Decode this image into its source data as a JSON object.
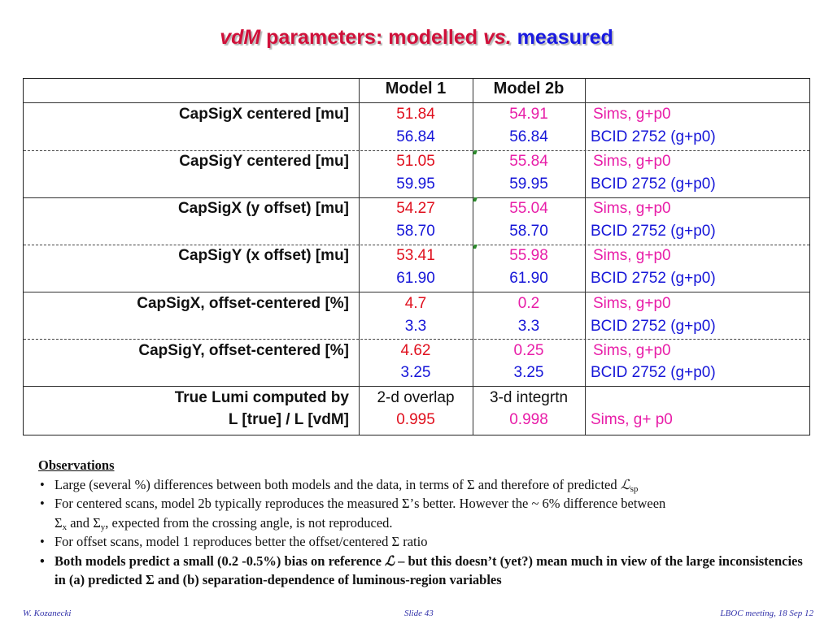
{
  "title": {
    "vdm": "vdM",
    "part1": "parameters:",
    "part2": "modelled",
    "vs": "vs.",
    "part3": "measured"
  },
  "table": {
    "headers": [
      "Model 1",
      "Model 2b",
      ""
    ],
    "rows": [
      {
        "label": "CapSigX centered [mu]",
        "m1": "51.84",
        "m2": "54.91",
        "src": "Sims, g+p0"
      },
      {
        "label": "",
        "m1": "56.84",
        "m2": "56.84",
        "src": "BCID 2752 (g+p0)"
      },
      {
        "label": "CapSigY centered [mu]",
        "m1": "51.05",
        "m2": "55.84",
        "src": "Sims, g+p0"
      },
      {
        "label": "",
        "m1": "59.95",
        "m2": "59.95",
        "src": "BCID 2752 (g+p0)"
      },
      {
        "label": "CapSigX (y offset) [mu]",
        "m1": "54.27",
        "m2": "55.04",
        "src": "Sims, g+p0"
      },
      {
        "label": "",
        "m1": "58.70",
        "m2": "58.70",
        "src": "BCID 2752 (g+p0)"
      },
      {
        "label": "CapSigY (x offset) [mu]",
        "m1": "53.41",
        "m2": "55.98",
        "src": "Sims, g+p0"
      },
      {
        "label": "",
        "m1": "61.90",
        "m2": "61.90",
        "src": "BCID 2752 (g+p0)"
      },
      {
        "label": "CapSigX, offset-centered [%]",
        "m1": "4.7",
        "m2": "0.2",
        "src": "Sims, g+p0"
      },
      {
        "label": "",
        "m1": "3.3",
        "m2": "3.3",
        "src": "BCID 2752 (g+p0)"
      },
      {
        "label": "CapSigY, offset-centered [%]",
        "m1": "4.62",
        "m2": "0.25",
        "src": "Sims, g+p0"
      },
      {
        "label": "",
        "m1": "3.25",
        "m2": "3.25",
        "src": "BCID 2752 (g+p0)"
      }
    ],
    "lumi": {
      "label1": "True Lumi computed by",
      "label2": "L [true] / L [vdM]",
      "m1_method": "2-d overlap",
      "m2_method": "3-d integrtn",
      "m1_value": "0.995",
      "m2_value": "0.998",
      "src": "Sims, g+ p0"
    }
  },
  "observations": {
    "heading": "Observations",
    "b1_text": "Large (several %) differences between both models and the data, in terms of  Σ and therefore of predicted ",
    "b1_sym": "ℒ",
    "b1_sub": "sp",
    "b2_text1": "For centered scans, model 2b typically reproduces the measured Σ’s better. However the ~ 6% difference between",
    "b2_sigma": "Σ",
    "b2_sub_x": "x",
    "b2_and": " and ",
    "b2_sub_y": "y",
    "b2_text2": ", expected from the crossing angle, is not reproduced.",
    "b3_text": "For offset scans, model 1 reproduces better the offset/centered Σ ratio",
    "b4_text1": "Both models predict a small (0.2 -0.5%) bias on reference ",
    "b4_sym": "ℒ",
    "b4_text2": " – but this doesn’t (yet?) mean much in view of the large inconsistencies in (a) predicted Σ and (b) separation-dependence of luminous-region variables"
  },
  "footer": {
    "author": "W. Kozanecki",
    "slide": "Slide 43",
    "meeting": "LBOC meeting, 18 Sep 12"
  },
  "colors": {
    "model1_sim": "#e0101e",
    "model2_sim": "#e81ea8",
    "measured": "#1616d8",
    "title_red": "#d0103a",
    "title_blue": "#1a1ae0"
  }
}
